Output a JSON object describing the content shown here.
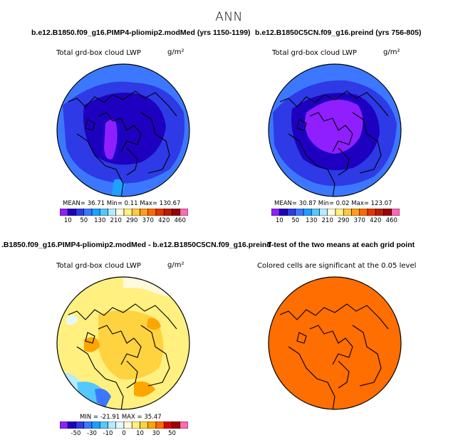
{
  "title": "ANN",
  "colors": {
    "abs_scale": [
      "#8f1fff",
      "#1e00c0",
      "#2d3ae6",
      "#3c78ff",
      "#1ea0ff",
      "#53c8ff",
      "#b5eaff",
      "#fffadc",
      "#fff080",
      "#ffc843",
      "#ff9d1a",
      "#ff6a00",
      "#e63500",
      "#be1e00",
      "#9c0000",
      "#ff69b4"
    ],
    "diff_scale": [
      "#8f1fff",
      "#1e00c0",
      "#2d3ae6",
      "#3c78ff",
      "#1ea0ff",
      "#53c8ff",
      "#b5eaff",
      "#e6f7ff",
      "#fffadc",
      "#fff080",
      "#ffd23f",
      "#ffa500",
      "#ff6a00",
      "#dc0000",
      "#a00000",
      "#ff69b4"
    ],
    "significant": "#ff6e00"
  },
  "panels": [
    {
      "title": "b.e12.B1850.f09_g16.PIMP4-pliomip2.modMed (yrs 1150-1199)",
      "subtitle": "Total grd-box cloud LWP",
      "units": "g/m²",
      "stats": "MEAN=  36.71   Min=    0.11   Max= 130.67",
      "ticks": [
        "10",
        "50",
        "130",
        "210",
        "290",
        "370",
        "420",
        "460"
      ]
    },
    {
      "title": "b.e12.B1850C5CN.f09_g16.preind (yrs 756-805)",
      "subtitle": "Total grd-box cloud LWP",
      "units": "g/m²",
      "stats": "MEAN=  30.87   Min=    0.02   Max= 123.07",
      "ticks": [
        "10",
        "50",
        "130",
        "210",
        "290",
        "370",
        "420",
        "460"
      ]
    },
    {
      "title": ".B1850.f09_g16.PIMP4-pliomip2.modMed - b.e12.B1850C5CN.f09_g16.preind",
      "subtitle": "Total grd-box cloud LWP",
      "units": "g/m²",
      "stats": "MIN = -21.91  MAX =  35.47",
      "ticks": [
        "-50",
        "-30",
        "-10",
        "0",
        "10",
        "30",
        "50"
      ]
    },
    {
      "title": "T-test of the two means at each grid point",
      "subtitle": "Colored cells are significant at the 0.05 level"
    }
  ]
}
